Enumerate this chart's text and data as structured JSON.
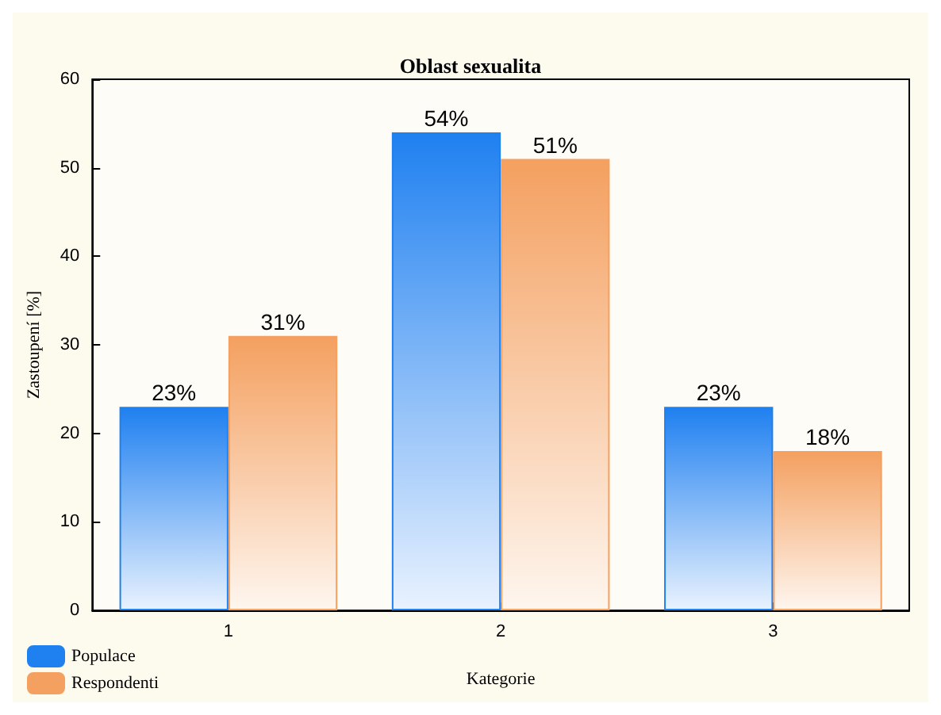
{
  "chart_data": {
    "type": "bar",
    "title": "Oblast sexualita",
    "xlabel": "Kategorie",
    "ylabel": "Zastoupení [%]",
    "categories": [
      "1",
      "2",
      "3"
    ],
    "series": [
      {
        "name": "Populace",
        "color": "#1f80f0",
        "values": [
          23,
          54,
          23
        ],
        "value_labels": [
          "23%",
          "54%",
          "23%"
        ]
      },
      {
        "name": "Respondenti",
        "color": "#f4a060",
        "values": [
          31,
          51,
          18
        ],
        "value_labels": [
          "31%",
          "51%",
          "18%"
        ]
      }
    ],
    "ylim": [
      0,
      60
    ],
    "yticks": [
      0,
      10,
      20,
      30,
      40,
      50,
      60
    ],
    "grid": false,
    "legend": "bottom left"
  }
}
